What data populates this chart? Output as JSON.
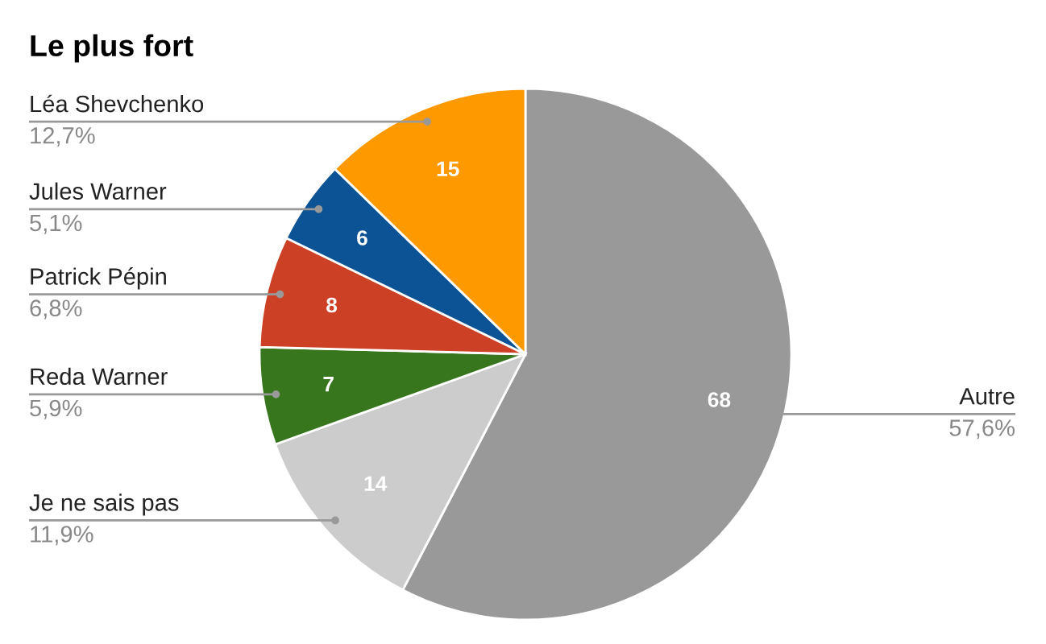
{
  "chart_data": {
    "type": "pie",
    "title": "Le plus fort",
    "categories": [
      "Autre",
      "Je ne sais pas",
      "Reda Warner",
      "Patrick Pépin",
      "Jules Warner",
      "Léa Shevchenko"
    ],
    "values": [
      68,
      14,
      7,
      8,
      6,
      15
    ],
    "colors": [
      "#999999",
      "#cccccc",
      "#38761d",
      "#cc4125",
      "#0b5394",
      "#ff9900"
    ],
    "data_labels": true,
    "annotations": [
      {
        "text": "57,6%",
        "x": "Autre"
      },
      {
        "text": "11,9%",
        "x": "Je ne sais pas"
      },
      {
        "text": "5,9%",
        "x": "Reda Warner"
      },
      {
        "text": "6,8%",
        "x": "Patrick Pépin"
      },
      {
        "text": "5,1%",
        "x": "Jules Warner"
      },
      {
        "text": "12,7%",
        "x": "Léa Shevchenko"
      }
    ]
  }
}
